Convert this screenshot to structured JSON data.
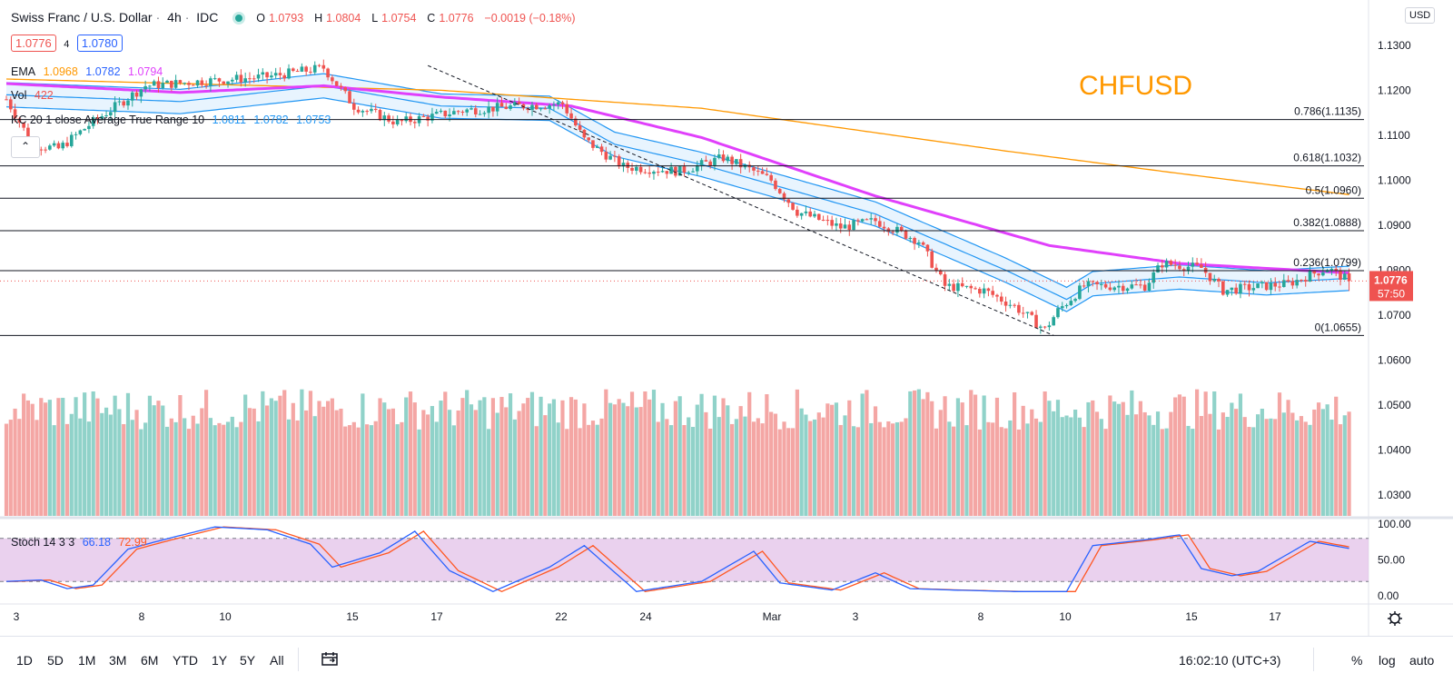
{
  "header": {
    "symbol": "Swiss Franc / U.S. Dollar",
    "interval": "4h",
    "exchange": "IDC",
    "open_label": "O",
    "open": "1.0793",
    "high_label": "H",
    "high": "1.0804",
    "low_label": "L",
    "low": "1.0754",
    "close_label": "C",
    "close": "1.0776",
    "change": "−0.0019 (−0.18%)"
  },
  "order": {
    "sell": "1.0776",
    "spread": "4",
    "buy": "1.0780"
  },
  "indicators": {
    "ema_name": "EMA",
    "ema_v1": "1.0968",
    "ema_v2": "1.0782",
    "ema_v3": "1.0794",
    "vol_name": "Vol",
    "vol_value": "422",
    "kc_name": "KC 20 1 close Average True Range 10",
    "kc_v1": "1.0811",
    "kc_v2": "1.0782",
    "kc_v3": "1.0753",
    "stoch_name": "Stoch 14 3 3",
    "stoch_k": "66.18",
    "stoch_d": "72.99"
  },
  "annotation_title": "CHFUSD",
  "fib_levels": [
    {
      "label": "0.786(1.1135)",
      "value": 1.1135
    },
    {
      "label": "0.618(1.1032)",
      "value": 1.1032
    },
    {
      "label": "0.5(1.0960)",
      "value": 1.096
    },
    {
      "label": "0.382(1.0888)",
      "value": 1.0888
    },
    {
      "label": "0.236(1.0799)",
      "value": 1.0799
    },
    {
      "label": "0(1.0655)",
      "value": 1.0655
    }
  ],
  "price_axis": {
    "currency": "USD",
    "ticks": [
      "1.1300",
      "1.1200",
      "1.1100",
      "1.1000",
      "1.0900",
      "1.0800",
      "1.0700",
      "1.0600",
      "1.0500",
      "1.0400",
      "1.0300"
    ],
    "last_price": "1.0776",
    "countdown": "57:50"
  },
  "stoch_axis": {
    "ticks": [
      "100.00",
      "50.00",
      "0.00"
    ]
  },
  "time_axis": {
    "labels": [
      "3",
      "8",
      "10",
      "15",
      "17",
      "22",
      "24",
      "Mar",
      "3",
      "8",
      "10",
      "15",
      "17"
    ]
  },
  "bottom_bar": {
    "ranges": [
      "1D",
      "5D",
      "1M",
      "3M",
      "6M",
      "YTD",
      "1Y",
      "5Y",
      "All"
    ],
    "time": "16:02:10 (UTC+3)",
    "percent": "%",
    "log": "log",
    "auto": "auto"
  },
  "colors": {
    "up": "#26a69a",
    "down": "#ef5350",
    "ema_fast": "#e040fb",
    "ema_slow": "#ff9800",
    "kc": "#2196f3",
    "stoch_k": "#2962ff",
    "stoch_d": "#ff5722",
    "stoch_band": "#e1bee7",
    "annotation": "#ff9800",
    "fib": "#000000"
  },
  "chart_data": {
    "type": "candlestick",
    "ylim": [
      1.025,
      1.133
    ],
    "candle_keypoints": [
      [
        0,
        1.118
      ],
      [
        6,
        1.108
      ],
      [
        12,
        1.107
      ],
      [
        20,
        1.113
      ],
      [
        32,
        1.121
      ],
      [
        45,
        1.122
      ],
      [
        60,
        1.123
      ],
      [
        73,
        1.125
      ],
      [
        80,
        1.1165
      ],
      [
        90,
        1.1128
      ],
      [
        105,
        1.1155
      ],
      [
        118,
        1.1165
      ],
      [
        128,
        1.117
      ],
      [
        133,
        1.109
      ],
      [
        142,
        1.103
      ],
      [
        155,
        1.102
      ],
      [
        165,
        1.105
      ],
      [
        172,
        1.102
      ],
      [
        176,
        1.1
      ],
      [
        182,
        1.093
      ],
      [
        192,
        1.0895
      ],
      [
        200,
        1.091
      ],
      [
        210,
        1.0865
      ],
      [
        216,
        1.0765
      ],
      [
        225,
        1.0755
      ],
      [
        232,
        1.072
      ],
      [
        239,
        1.0668
      ],
      [
        242,
        1.071
      ],
      [
        248,
        1.0765
      ],
      [
        262,
        1.0765
      ],
      [
        266,
        1.0815
      ],
      [
        275,
        1.0805
      ],
      [
        280,
        1.0755
      ],
      [
        295,
        1.077
      ],
      [
        304,
        1.0805
      ],
      [
        309,
        1.0776
      ]
    ],
    "ema_fast_keypoints": [
      [
        0,
        1.1215
      ],
      [
        40,
        1.1195
      ],
      [
        73,
        1.121
      ],
      [
        100,
        1.1185
      ],
      [
        130,
        1.1165
      ],
      [
        160,
        1.1095
      ],
      [
        200,
        1.0965
      ],
      [
        240,
        1.0855
      ],
      [
        270,
        1.0815
      ],
      [
        309,
        1.0794
      ]
    ],
    "ema_slow_keypoints": [
      [
        0,
        1.1225
      ],
      [
        100,
        1.12
      ],
      [
        160,
        1.116
      ],
      [
        230,
        1.1065
      ],
      [
        270,
        1.1015
      ],
      [
        309,
        1.0968
      ]
    ],
    "kc_keypoints": [
      [
        0,
        1.119
      ],
      [
        40,
        1.1175
      ],
      [
        73,
        1.121
      ],
      [
        100,
        1.1165
      ],
      [
        125,
        1.116
      ],
      [
        140,
        1.108
      ],
      [
        160,
        1.1035
      ],
      [
        180,
        1.098
      ],
      [
        200,
        1.0925
      ],
      [
        230,
        1.08
      ],
      [
        244,
        1.0735
      ],
      [
        250,
        1.077
      ],
      [
        270,
        1.0785
      ],
      [
        290,
        1.0772
      ],
      [
        309,
        1.0782
      ]
    ],
    "volume_ylim": [
      0,
      850
    ],
    "stoch_keypoints": [
      [
        0,
        20
      ],
      [
        8,
        22
      ],
      [
        14,
        10
      ],
      [
        20,
        15
      ],
      [
        28,
        65
      ],
      [
        36,
        78
      ],
      [
        48,
        96
      ],
      [
        60,
        92
      ],
      [
        70,
        72
      ],
      [
        75,
        40
      ],
      [
        86,
        60
      ],
      [
        94,
        90
      ],
      [
        102,
        35
      ],
      [
        112,
        6
      ],
      [
        125,
        40
      ],
      [
        133,
        70
      ],
      [
        145,
        6
      ],
      [
        160,
        20
      ],
      [
        172,
        62
      ],
      [
        178,
        18
      ],
      [
        190,
        8
      ],
      [
        200,
        32
      ],
      [
        208,
        10
      ],
      [
        218,
        8
      ],
      [
        232,
        6
      ],
      [
        244,
        6
      ],
      [
        250,
        70
      ],
      [
        262,
        78
      ],
      [
        270,
        85
      ],
      [
        275,
        38
      ],
      [
        282,
        28
      ],
      [
        288,
        34
      ],
      [
        300,
        76
      ],
      [
        309,
        66
      ]
    ],
    "fib_from": [
      [
        97,
        1.1255
      ],
      [
        241,
        1.0655
      ]
    ]
  }
}
